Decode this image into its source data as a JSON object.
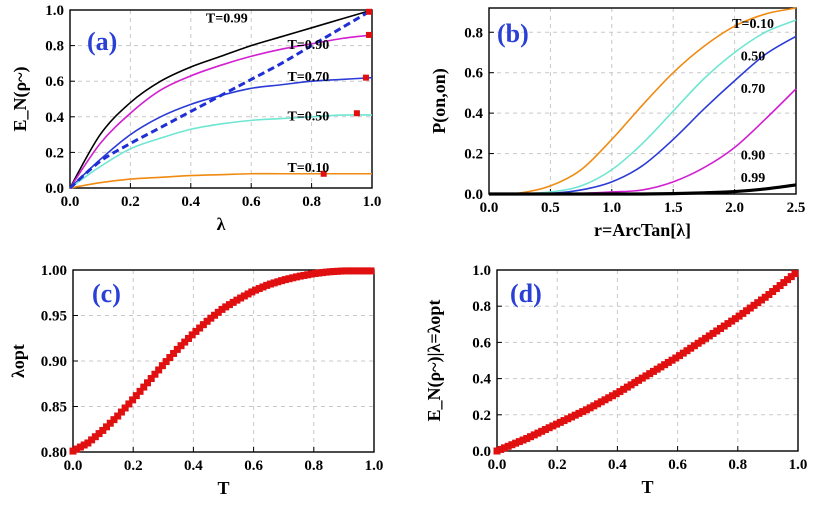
{
  "chart_data": [
    {
      "id": "a",
      "type": "line",
      "panel_label": "(a)",
      "xlabel": "λ",
      "ylabel": "E_N(ρ~)",
      "xlim": [
        0,
        1
      ],
      "ylim": [
        0,
        1
      ],
      "xticks": [
        "0.0",
        "0.2",
        "0.4",
        "0.6",
        "0.8",
        "1.0"
      ],
      "yticks": [
        "0.0",
        "0.2",
        "0.4",
        "0.6",
        "0.8",
        "1.0"
      ],
      "x": [
        0,
        0.1,
        0.2,
        0.3,
        0.4,
        0.5,
        0.6,
        0.7,
        0.8,
        0.9,
        1.0
      ],
      "series": [
        {
          "name": "T=0.99",
          "color": "#000000",
          "values": [
            0,
            0.3,
            0.48,
            0.6,
            0.68,
            0.74,
            0.8,
            0.85,
            0.9,
            0.95,
            1.0
          ]
        },
        {
          "name": "T=0.90",
          "color": "#d21fd2",
          "values": [
            0,
            0.25,
            0.42,
            0.55,
            0.63,
            0.69,
            0.74,
            0.78,
            0.81,
            0.84,
            0.86
          ]
        },
        {
          "name": "T=0.70",
          "color": "#2b3bd6",
          "values": [
            0,
            0.16,
            0.3,
            0.4,
            0.47,
            0.52,
            0.56,
            0.58,
            0.6,
            0.61,
            0.62
          ]
        },
        {
          "name": "T=0.50",
          "color": "#6fe6d2",
          "values": [
            0,
            0.12,
            0.22,
            0.28,
            0.33,
            0.36,
            0.38,
            0.39,
            0.4,
            0.41,
            0.41
          ]
        },
        {
          "name": "T=0.10",
          "color": "#f08a10",
          "values": [
            0,
            0.03,
            0.05,
            0.06,
            0.07,
            0.075,
            0.08,
            0.08,
            0.08,
            0.08,
            0.08
          ]
        },
        {
          "name": "dashed",
          "color": "#1f2fd6",
          "dashed": true,
          "values": [
            0,
            0.15,
            0.25,
            0.34,
            0.43,
            0.52,
            0.61,
            0.7,
            0.8,
            0.9,
            1.0
          ]
        }
      ],
      "markers": [
        {
          "x": 0.99,
          "y": 0.99
        },
        {
          "x": 0.99,
          "y": 0.86
        },
        {
          "x": 0.98,
          "y": 0.62
        },
        {
          "x": 0.95,
          "y": 0.42
        },
        {
          "x": 0.84,
          "y": 0.08
        }
      ],
      "curve_labels": [
        {
          "text": "T=0.99",
          "x": 0.45,
          "y": 0.93
        },
        {
          "text": "T=0.90",
          "x": 0.72,
          "y": 0.78
        },
        {
          "text": "T=0.70",
          "x": 0.72,
          "y": 0.6
        },
        {
          "text": "T=0.50",
          "x": 0.72,
          "y": 0.38
        },
        {
          "text": "T=0.10",
          "x": 0.72,
          "y": 0.09
        }
      ]
    },
    {
      "id": "b",
      "type": "line",
      "panel_label": "(b)",
      "xlabel": "r=ArcTan[λ]",
      "ylabel": "P(on,on)",
      "xlim": [
        0,
        2.5
      ],
      "ylim": [
        0,
        0.92
      ],
      "xticks": [
        "0.0",
        "0.5",
        "1.0",
        "1.5",
        "2.0",
        "2.5"
      ],
      "yticks": [
        "0.0",
        "0.2",
        "0.4",
        "0.6",
        "0.8"
      ],
      "x": [
        0,
        0.25,
        0.5,
        0.75,
        1.0,
        1.25,
        1.5,
        1.75,
        2.0,
        2.25,
        2.5
      ],
      "series": [
        {
          "name": "T=0.10",
          "color": "#f08a10",
          "values": [
            0,
            0.005,
            0.04,
            0.12,
            0.27,
            0.44,
            0.6,
            0.73,
            0.83,
            0.89,
            0.92
          ]
        },
        {
          "name": "0.50",
          "color": "#6fe6d2",
          "values": [
            0,
            0,
            0.01,
            0.04,
            0.12,
            0.25,
            0.41,
            0.57,
            0.7,
            0.8,
            0.86
          ]
        },
        {
          "name": "0.70",
          "color": "#2b3bd6",
          "values": [
            0,
            0,
            0.003,
            0.02,
            0.06,
            0.14,
            0.27,
            0.42,
            0.56,
            0.69,
            0.78
          ]
        },
        {
          "name": "0.90",
          "color": "#d21fd2",
          "values": [
            0,
            0,
            0,
            0.003,
            0.01,
            0.02,
            0.06,
            0.13,
            0.23,
            0.37,
            0.52
          ]
        },
        {
          "name": "0.99",
          "color": "#000000",
          "thick": true,
          "values": [
            0,
            0,
            0,
            0,
            0,
            0,
            0.002,
            0.006,
            0.012,
            0.025,
            0.045
          ]
        }
      ],
      "curve_labels": [
        {
          "text": "T=0.10",
          "x": 1.98,
          "y": 0.82
        },
        {
          "text": "0.50",
          "x": 2.05,
          "y": 0.66
        },
        {
          "text": "0.70",
          "x": 2.05,
          "y": 0.5
        },
        {
          "text": "0.90",
          "x": 2.05,
          "y": 0.17
        },
        {
          "text": "0.99",
          "x": 2.05,
          "y": 0.06
        }
      ]
    },
    {
      "id": "c",
      "type": "scatter",
      "panel_label": "(c)",
      "xlabel": "T",
      "ylabel": "λopt",
      "xlim": [
        0,
        1
      ],
      "ylim": [
        0.8,
        1.0
      ],
      "xticks": [
        "0.0",
        "0.2",
        "0.4",
        "0.6",
        "0.8",
        "1.0"
      ],
      "yticks": [
        "0.80",
        "0.85",
        "0.90",
        "0.95",
        "1.00"
      ],
      "color": "#e01010",
      "x": [
        0,
        0.05,
        0.1,
        0.15,
        0.2,
        0.25,
        0.3,
        0.35,
        0.4,
        0.45,
        0.5,
        0.55,
        0.6,
        0.65,
        0.7,
        0.75,
        0.8,
        0.85,
        0.9,
        0.95,
        0.99
      ],
      "values": [
        0.801,
        0.81,
        0.824,
        0.84,
        0.858,
        0.877,
        0.896,
        0.914,
        0.93,
        0.945,
        0.958,
        0.968,
        0.977,
        0.984,
        0.989,
        0.993,
        0.996,
        0.998,
        0.999,
        0.999,
        0.999
      ]
    },
    {
      "id": "d",
      "type": "scatter",
      "panel_label": "(d)",
      "xlabel": "T",
      "ylabel": "E_N(ρ~)|λ=λopt",
      "xlim": [
        0,
        1
      ],
      "ylim": [
        0,
        1
      ],
      "xticks": [
        "0.0",
        "0.2",
        "0.4",
        "0.6",
        "0.8",
        "1.0"
      ],
      "yticks": [
        "0.0",
        "0.2",
        "0.4",
        "0.6",
        "0.8",
        "1.0"
      ],
      "color": "#e01010",
      "x": [
        0,
        0.1,
        0.2,
        0.3,
        0.4,
        0.5,
        0.6,
        0.7,
        0.8,
        0.9,
        0.99
      ],
      "values": [
        0,
        0.07,
        0.15,
        0.23,
        0.32,
        0.42,
        0.52,
        0.63,
        0.74,
        0.86,
        0.98
      ]
    }
  ]
}
